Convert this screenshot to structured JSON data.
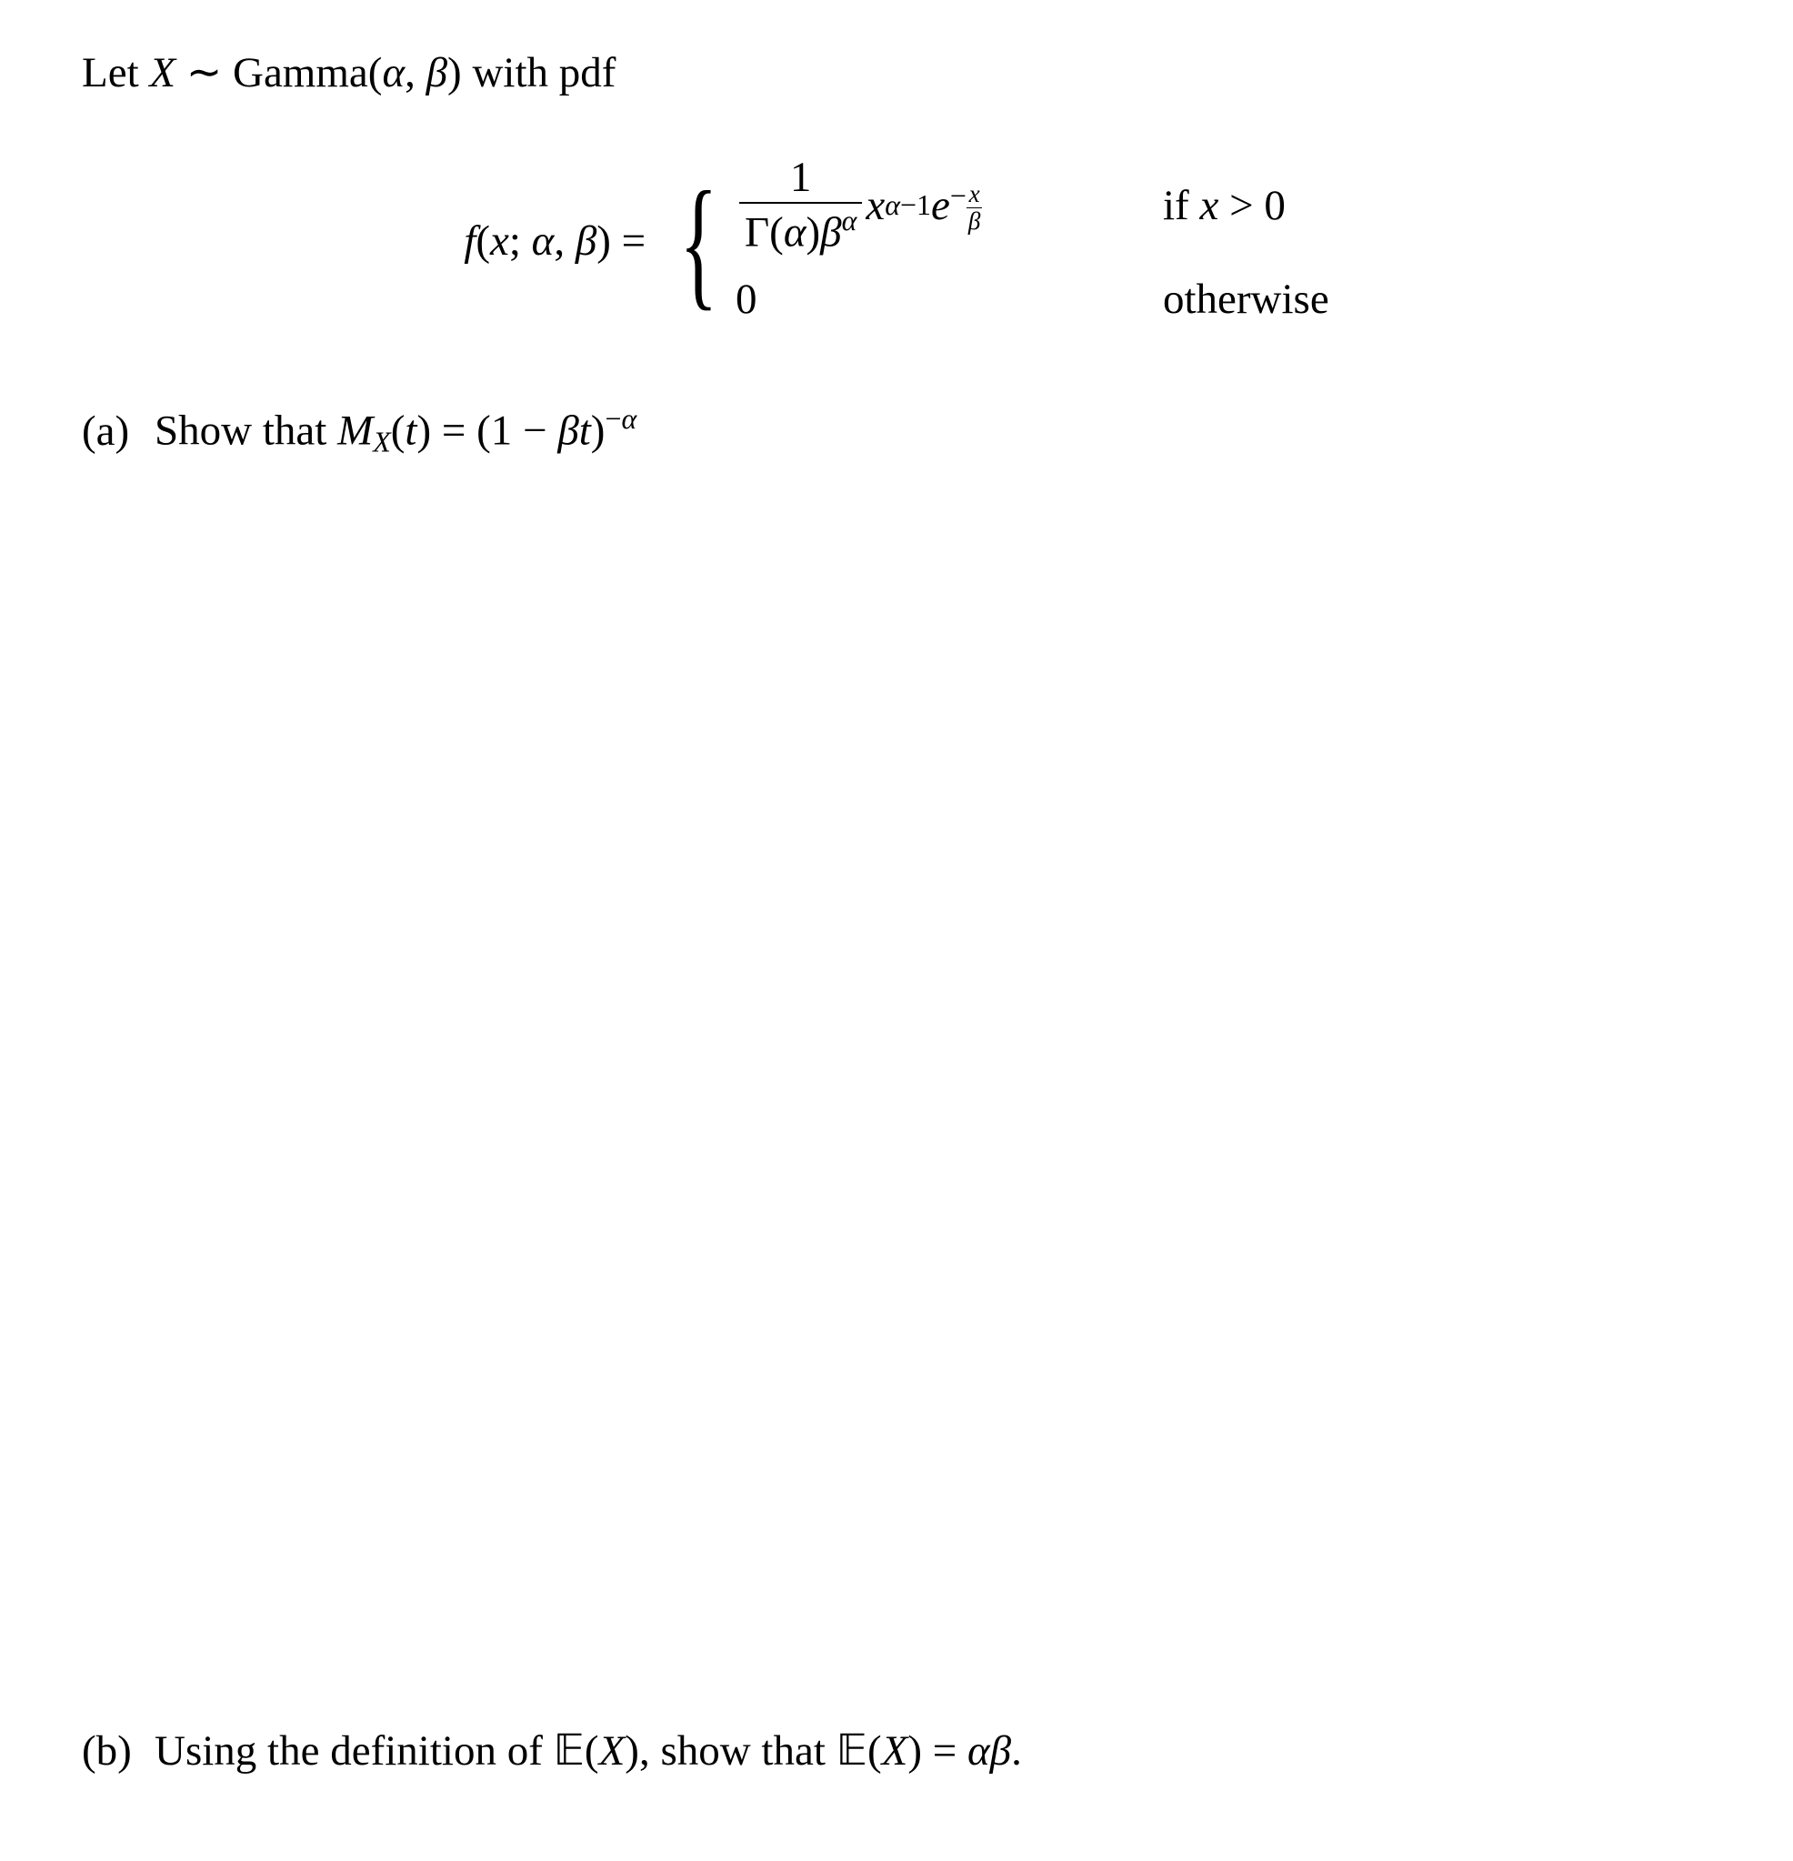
{
  "intro": {
    "prefix": "Let ",
    "var": "X",
    "tilde": " ∼ ",
    "dist": "Gamma",
    "params_open": "(",
    "alpha": "α",
    "comma": ", ",
    "beta": "β",
    "params_close": ")",
    "suffix": " with pdf"
  },
  "pdf": {
    "lhs": {
      "f": "f",
      "open": "(",
      "x": "x",
      "sep1": "; ",
      "alpha": "α",
      "sep2": ", ",
      "beta": "β",
      "close": ")",
      "eq": " = "
    },
    "case1": {
      "frac_num": "1",
      "gamma": "Γ",
      "open": "(",
      "alpha": "α",
      "close": ")",
      "beta": "β",
      "beta_exp": "α",
      "x": "x",
      "x_exp_a": "α",
      "x_exp_minus1": "−1",
      "e": "e",
      "e_neg": "−",
      "e_frac_num": "x",
      "e_frac_den": "β",
      "cond_if": "if ",
      "cond_x": "x",
      "cond_gt0": " > 0"
    },
    "case2": {
      "zero": "0",
      "cond": "otherwise"
    }
  },
  "partA": {
    "label": "(a)",
    "text1": "Show that ",
    "M": "M",
    "sub": "X",
    "open": "(",
    "t": "t",
    "close": ")",
    "eq": " = ",
    "lpar": "(",
    "one": "1",
    "minus": " − ",
    "beta": "β",
    "t2": "t",
    "rpar": ")",
    "exp_minus": "−",
    "exp_alpha": "α"
  },
  "partB": {
    "label": "(b)",
    "text1": "Using the definition of ",
    "E1": "𝔼",
    "open1": "(",
    "X1": "X",
    "close1": ")",
    "text2": ", show that ",
    "E2": "𝔼",
    "open2": "(",
    "X2": "X",
    "close2": ")",
    "eq": " = ",
    "alpha": "α",
    "beta": "β",
    "period": "."
  }
}
